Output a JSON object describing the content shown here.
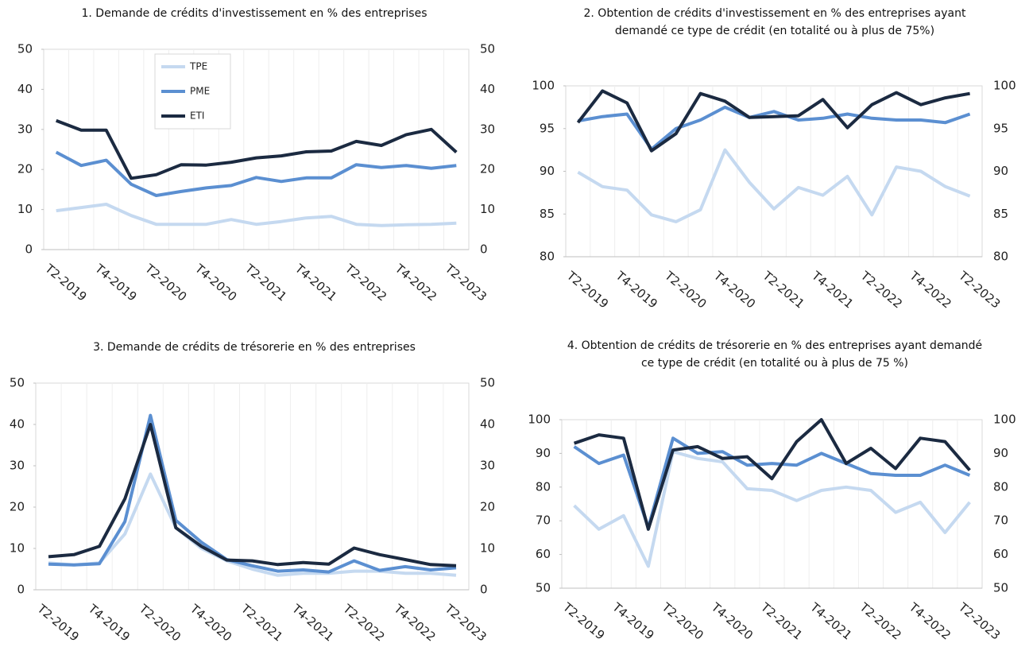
{
  "chart_data": [
    {
      "type": "line",
      "title": "1. Demande de crédits d'investissement en % des entreprises",
      "categories": [
        "T2-2019",
        null,
        "T4-2019",
        null,
        "T2-2020",
        null,
        "T4-2020",
        null,
        "T2-2021",
        null,
        "T4-2021",
        null,
        "T2-2022",
        null,
        "T4-2022",
        null,
        "T2-2023"
      ],
      "series": [
        {
          "name": "TPE",
          "color": "#c5d9f0",
          "values": [
            9.7,
            10.5,
            11.3,
            8.5,
            6.3,
            6.3,
            6.3,
            7.5,
            6.3,
            7,
            7.9,
            8.3,
            6.3,
            6,
            6.2,
            6.3,
            6.6
          ]
        },
        {
          "name": "PME",
          "color": "#5b8fd1",
          "values": [
            24.3,
            21,
            22.3,
            16.3,
            13.5,
            14.5,
            15.4,
            16,
            18,
            17,
            17.9,
            17.9,
            21.2,
            20.5,
            21,
            20.3,
            21
          ]
        },
        {
          "name": "ETI",
          "color": "#1b2a41",
          "values": [
            32.2,
            29.8,
            29.8,
            17.8,
            18.7,
            21.2,
            21.1,
            21.8,
            22.9,
            23.4,
            24.4,
            24.6,
            27,
            26,
            28.7,
            30,
            24.3
          ]
        }
      ],
      "ylim": [
        0,
        50
      ],
      "yticks": [
        0,
        10,
        20,
        30,
        40,
        50
      ],
      "legend": "upper left"
    },
    {
      "type": "line",
      "title": "2. Obtention de crédits d'investissement en % des entreprises ayant demandé ce type de crédit (en totalité ou à plus de 75%)",
      "categories": [
        "T2-2019",
        null,
        "T4-2019",
        null,
        "T2-2020",
        null,
        "T4-2020",
        null,
        "T2-2021",
        null,
        "T4-2021",
        null,
        "T2-2022",
        null,
        "T4-2022",
        null,
        "T2-2023"
      ],
      "series": [
        {
          "color": "#c5d9f0",
          "values": [
            89.9,
            88.2,
            87.8,
            84.9,
            84.1,
            85.5,
            92.5,
            88.7,
            85.6,
            88.1,
            87.2,
            89.4,
            84.9,
            90.5,
            90,
            88.2,
            87.1
          ]
        },
        {
          "color": "#5b8fd1",
          "values": [
            95.9,
            96.4,
            96.7,
            92.6,
            95,
            96,
            97.5,
            96.3,
            97,
            96,
            96.2,
            96.7,
            96.2,
            96,
            96,
            95.7,
            96.7
          ]
        },
        {
          "color": "#1b2a41",
          "values": [
            95.7,
            99.4,
            98,
            92.4,
            94.4,
            99.1,
            98.2,
            96.3,
            96.4,
            96.5,
            98.4,
            95.1,
            97.8,
            99.2,
            97.8,
            98.6,
            99.1
          ]
        }
      ],
      "ylim": [
        80,
        100
      ],
      "yticks": [
        80,
        85,
        90,
        95,
        100
      ]
    },
    {
      "type": "line",
      "title": "3. Demande de crédits de trésorerie en % des entreprises",
      "categories": [
        "T2-2019",
        null,
        "T4-2019",
        null,
        "T2-2020",
        null,
        "T4-2020",
        null,
        "T2-2021",
        null,
        "T4-2021",
        null,
        "T2-2022",
        null,
        "T4-2022",
        null,
        "T2-2023"
      ],
      "series": [
        {
          "color": "#c5d9f0",
          "values": [
            6.5,
            6,
            6.5,
            13.5,
            28,
            15,
            10,
            7,
            5,
            3.5,
            4,
            4,
            4.5,
            4.5,
            4,
            4,
            3.5
          ]
        },
        {
          "color": "#5b8fd1",
          "values": [
            6.2,
            6,
            6.3,
            16.5,
            42.2,
            16.8,
            11.5,
            7.3,
            5.8,
            4.5,
            4.8,
            4.3,
            7,
            4.7,
            5.6,
            4.8,
            5.3
          ]
        },
        {
          "color": "#1b2a41",
          "values": [
            8,
            8.5,
            10.5,
            22,
            40,
            15,
            10.5,
            7.2,
            7,
            6.1,
            6.6,
            6.2,
            10.1,
            8.5,
            7.3,
            6.1,
            5.8
          ]
        }
      ],
      "ylim": [
        0,
        50
      ],
      "yticks": [
        0,
        10,
        20,
        30,
        40,
        50
      ]
    },
    {
      "type": "line",
      "title": "4. Obtention de crédits de trésorerie en % des entreprises ayant demandé ce type de crédit (en totalité ou à plus de 75 %)",
      "categories": [
        "T2-2019",
        null,
        "T4-2019",
        null,
        "T2-2020",
        null,
        "T4-2020",
        null,
        "T2-2021",
        null,
        "T4-2021",
        null,
        "T2-2022",
        null,
        "T4-2022",
        null,
        "T2-2023"
      ],
      "series": [
        {
          "color": "#c5d9f0",
          "values": [
            74.5,
            67.5,
            71.5,
            56.5,
            90.5,
            88.5,
            87.5,
            79.5,
            79,
            76,
            79,
            80,
            79,
            72.5,
            75.5,
            66.5,
            75.5
          ]
        },
        {
          "color": "#5b8fd1",
          "values": [
            92,
            87,
            89.5,
            68,
            94.5,
            90,
            90.5,
            86.5,
            87,
            86.5,
            90,
            87,
            84,
            83.5,
            83.5,
            86.5,
            83.5
          ]
        },
        {
          "color": "#1b2a41",
          "values": [
            93,
            95.5,
            94.5,
            67.5,
            91,
            92,
            88.5,
            89,
            82.5,
            93.5,
            100,
            87,
            91.5,
            85.5,
            94.5,
            93.5,
            85
          ]
        }
      ],
      "ylim": [
        50,
        100
      ],
      "yticks": [
        50,
        60,
        70,
        80,
        90,
        100
      ]
    }
  ]
}
